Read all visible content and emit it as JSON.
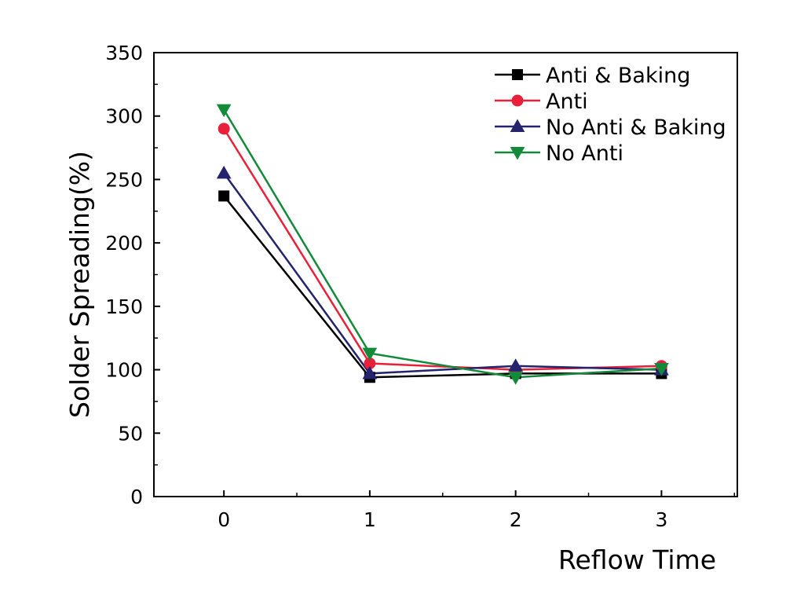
{
  "chart_data": {
    "type": "line",
    "xlabel": "Reflow Time",
    "ylabel": "Solder Spreading(%)",
    "xlim": [
      -0.48,
      3.52
    ],
    "ylim": [
      0,
      350
    ],
    "xticks": [
      0,
      1,
      2,
      3
    ],
    "yticks": [
      0,
      50,
      100,
      150,
      200,
      250,
      300,
      350
    ],
    "grid": false,
    "legend_position": "top-right",
    "x": [
      0,
      1,
      2,
      3
    ],
    "series": [
      {
        "name": "Anti & Baking",
        "color": "#000000",
        "marker": "square",
        "values": [
          237,
          94,
          97,
          97
        ]
      },
      {
        "name": "Anti",
        "color": "#e8203a",
        "marker": "circle",
        "values": [
          290,
          105,
          100,
          103
        ]
      },
      {
        "name": "No Anti & Baking",
        "color": "#23236e",
        "marker": "triangle-up",
        "values": [
          255,
          97,
          103,
          100
        ]
      },
      {
        "name": "No Anti",
        "color": "#138a3a",
        "marker": "triangle-down",
        "values": [
          305,
          113,
          94,
          101
        ]
      }
    ]
  }
}
